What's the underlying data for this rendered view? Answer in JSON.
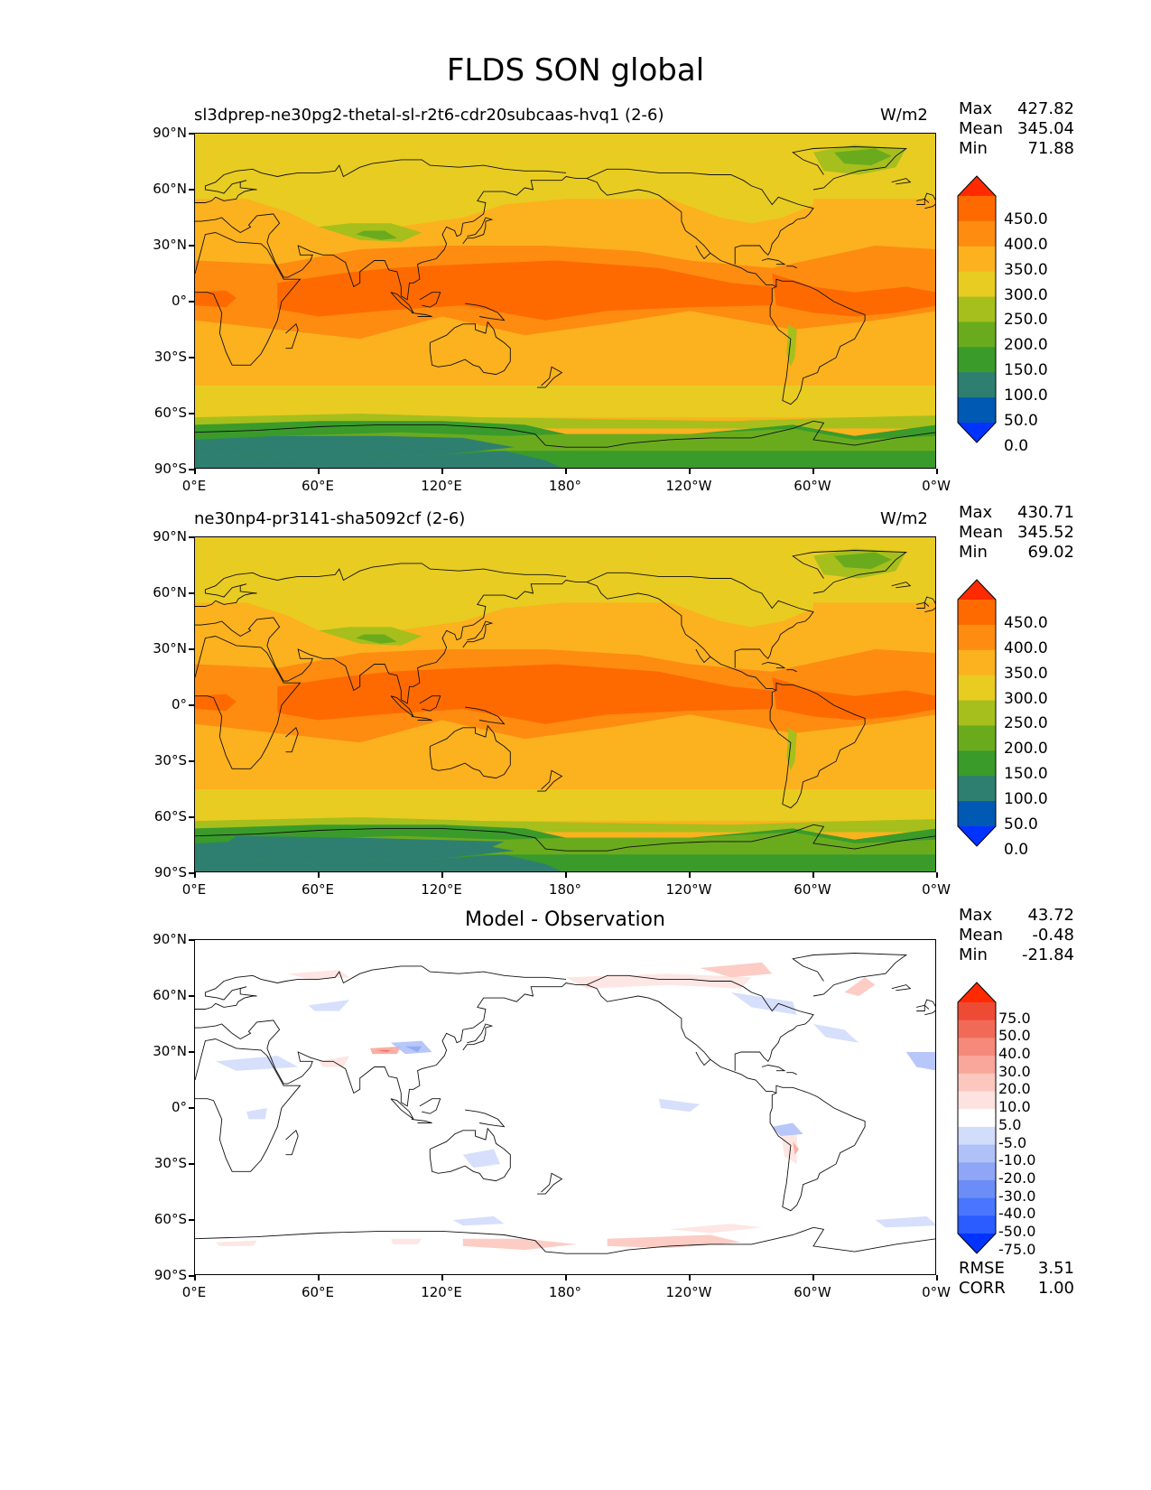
{
  "figure_title": "FLDS SON global",
  "panels": [
    {
      "title": "sl3dprep-ne30pg2-thetal-sl-r2t6-cdr20subcaas-hvq1 (2-6)",
      "units": "W/m2",
      "stats": {
        "max_label": "Max",
        "max": "427.82",
        "mean_label": "Mean",
        "mean": "345.04",
        "min_label": "Min",
        "min": "71.88"
      },
      "colorbar_labels": [
        "450.0",
        "400.0",
        "350.0",
        "300.0",
        "250.0",
        "200.0",
        "150.0",
        "100.0",
        "50.0",
        "0.0"
      ]
    },
    {
      "title": "ne30np4-pr3141-sha5092cf (2-6)",
      "units": "W/m2",
      "stats": {
        "max_label": "Max",
        "max": "430.71",
        "mean_label": "Mean",
        "mean": "345.52",
        "min_label": "Min",
        "min": "69.02"
      },
      "colorbar_labels": [
        "450.0",
        "400.0",
        "350.0",
        "300.0",
        "250.0",
        "200.0",
        "150.0",
        "100.0",
        "50.0",
        "0.0"
      ]
    },
    {
      "title": "Model - Observation",
      "units": "",
      "stats": {
        "max_label": "Max",
        "max": "43.72",
        "mean_label": "Mean",
        "mean": "-0.48",
        "min_label": "Min",
        "min": "-21.84"
      },
      "colorbar_labels": [
        "75.0",
        "50.0",
        "40.0",
        "30.0",
        "20.0",
        "10.0",
        "5.0",
        "-5.0",
        "-10.0",
        "-20.0",
        "-30.0",
        "-40.0",
        "-50.0",
        "-75.0"
      ],
      "rmse_label": "RMSE",
      "rmse": "3.51",
      "corr_label": "CORR",
      "corr": "1.00"
    }
  ],
  "lat_ticks": [
    "90°N",
    "60°N",
    "30°N",
    "0°",
    "30°S",
    "60°S",
    "90°S"
  ],
  "lon_ticks": [
    "0°E",
    "60°E",
    "120°E",
    "180°",
    "120°W",
    "60°W",
    "0°W"
  ],
  "colors": {
    "field_scale": [
      "#0033ff",
      "#0059b3",
      "#2f7f70",
      "#3a9b2a",
      "#6aab1e",
      "#a6bf1c",
      "#e8cc22",
      "#fcb11f",
      "#fd8c11",
      "#ff6a00",
      "#ff2a00"
    ],
    "diff_scale": [
      "#0033ff",
      "#2a5cff",
      "#4a75ff",
      "#6b8df5",
      "#8ea6f5",
      "#b0c1f8",
      "#d2dcfb",
      "#ffffff",
      "#fde3e0",
      "#fcc7bf",
      "#f9a79a",
      "#f58a7a",
      "#f16a57",
      "#ee4b35",
      "#ff2a00"
    ]
  }
}
